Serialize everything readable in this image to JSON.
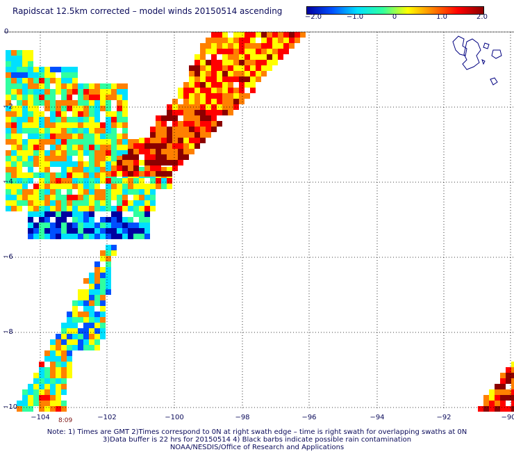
{
  "title": "Rapidscat 12.5km corrected – model winds 20150514 ascending",
  "colorbar": {
    "labels": [
      "−2.0",
      "−1.0",
      "0",
      "1.0",
      "2.0"
    ],
    "stops": [
      "#0000a0",
      "#0050ff",
      "#00e0ff",
      "#30ffa0",
      "#ffff00",
      "#ff8000",
      "#ff0000",
      "#8b0000"
    ]
  },
  "axes": {
    "lon_labels": [
      "−104",
      "−102",
      "−100",
      "−98",
      "−96",
      "−94",
      "−92",
      "−90"
    ],
    "lat_labels": [
      "0",
      "−2",
      "−4",
      "−6",
      "−8",
      "−10"
    ],
    "lon_range": [
      -105,
      -90
    ],
    "lat_range": [
      -10,
      0
    ]
  },
  "time_label": "8:09",
  "notes": [
    "Note: 1) Times are GMT 2)Times correspond to 0N at right swath edge – time is right swath for overlapping swaths at 0N",
    "3)Data buffer is 22 hrs for 20150514 4) Black barbs indicate possible rain contamination",
    "NOAA/NESDIS/Office of Research and Applications"
  ]
}
